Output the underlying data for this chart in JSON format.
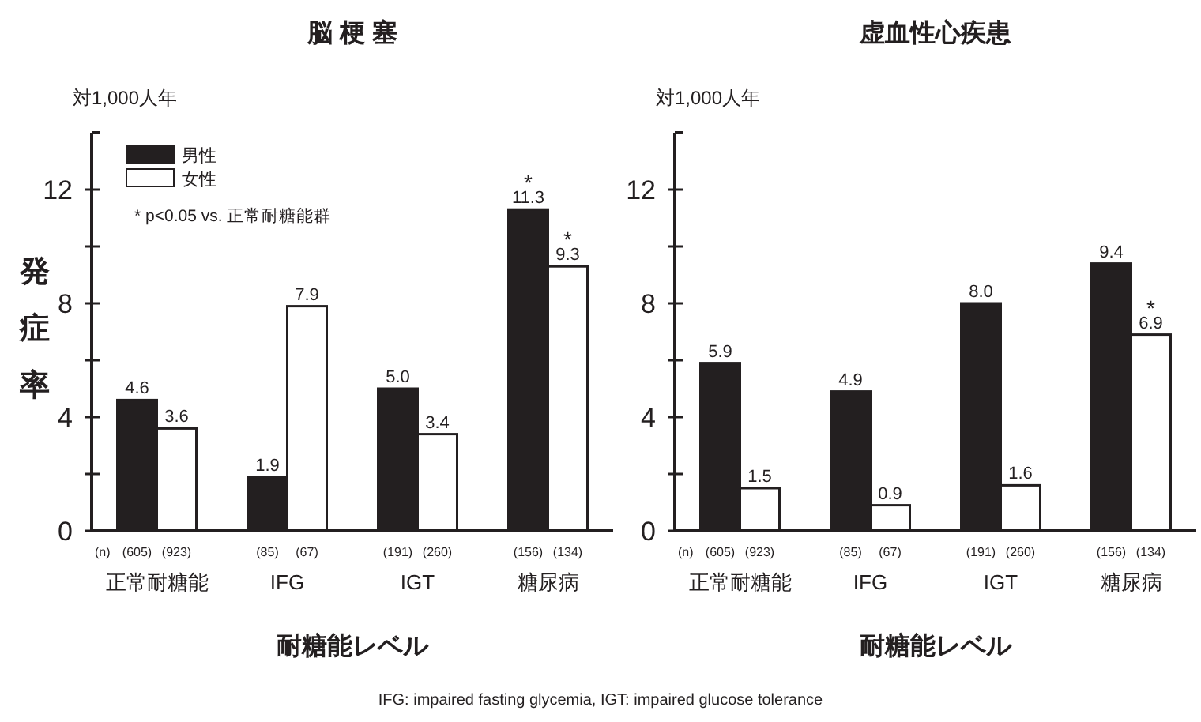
{
  "chart_data": [
    {
      "type": "bar",
      "title": "脳 梗 塞",
      "xlabel": "耐糖能レベル",
      "ylabel": "発症率",
      "categories": [
        "正常耐糖能",
        "IFG",
        "IGT",
        "糖尿病"
      ],
      "series": [
        {
          "name": "男性",
          "color": "#231f20",
          "values": [
            4.6,
            1.9,
            5.0,
            11.3
          ],
          "value_labels": [
            "4.6",
            "1.9",
            "5.0",
            "11.3"
          ]
        },
        {
          "name": "女性",
          "color": "#ffffff",
          "values": [
            3.6,
            7.9,
            3.4,
            9.3
          ],
          "value_labels": [
            "3.6",
            "7.9",
            "3.4",
            "9.3"
          ]
        }
      ],
      "ylim": [
        0,
        14
      ],
      "yticks": [
        0,
        {
          "value": 2,
          "label": null
        },
        4,
        {
          "value": 6,
          "label": null
        },
        8,
        {
          "value": 10,
          "label": null
        },
        12
      ],
      "legend": "top left",
      "grid": false,
      "annotations": [
        "対1,000人年",
        "(n)",
        "(605)",
        "(923)",
        "(85)",
        "(67)",
        "(191)",
        "(260)",
        "(156)",
        "(134)",
        "* p<0.05 vs. 正常耐糖能群",
        "IFG: impaired fasting glycemia, IGT: impaired glucose tolerance",
        {
          "text": "*",
          "x": "糖尿病",
          "y": 11.3
        },
        {
          "text": "*",
          "x": "糖尿病",
          "y": 9.3
        }
      ]
    },
    {
      "type": "bar",
      "title": "虚血性心疾患",
      "xlabel": "耐糖能レベル",
      "categories": [
        "正常耐糖能",
        "IFG",
        "IGT",
        "糖尿病"
      ],
      "series": [
        {
          "color": "#231f20",
          "values": [
            5.9,
            4.9,
            8.0,
            9.4
          ],
          "value_labels": [
            "5.9",
            "4.9",
            "8.0",
            "9.4"
          ]
        },
        {
          "color": "#ffffff",
          "values": [
            1.5,
            0.9,
            1.6,
            6.9
          ],
          "value_labels": [
            "1.5",
            "0.9",
            "1.6",
            "6.9"
          ]
        }
      ],
      "ylim": [
        0,
        14
      ],
      "yticks": [
        0,
        {
          "value": 2,
          "label": null
        },
        4,
        {
          "value": 6,
          "label": null
        },
        8,
        {
          "value": 10,
          "label": null
        },
        12
      ],
      "legend": false,
      "grid": false,
      "annotations": [
        "対1,000人年",
        "(n)",
        "(605)",
        "(923)",
        "(85)",
        "(67)",
        "(191)",
        "(260)",
        "(156)",
        "(134)",
        {
          "text": "*",
          "x": "糖尿病",
          "y": 6.9
        }
      ]
    }
  ]
}
